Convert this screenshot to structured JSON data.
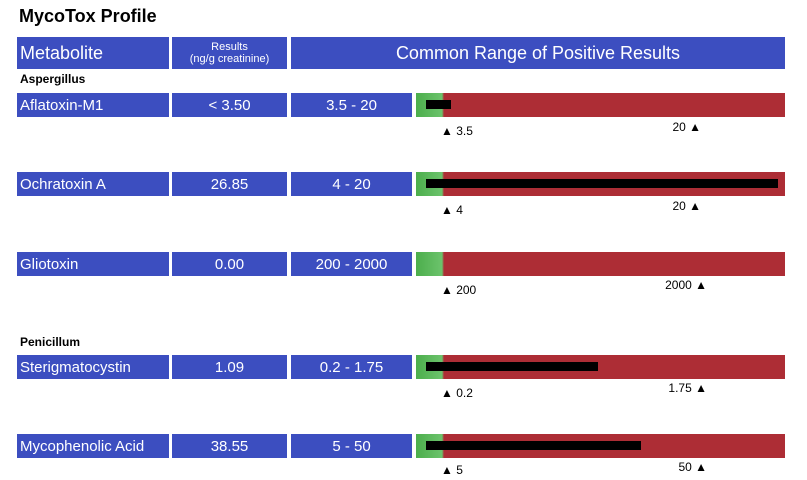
{
  "title": "MycoTox Profile",
  "header": {
    "metabolite": "Metabolite",
    "results_line1": "Results",
    "results_line2": "(ng/g creatinine)",
    "range": "Common Range of Positive Results"
  },
  "sections": [
    {
      "name": "Aspergillus",
      "items": [
        {
          "metabolite": "Aflatoxin-M1",
          "result": "< 3.50",
          "range": "3.5 - 20",
          "low_label": "▲ 3.5",
          "high_label": "20 ▲",
          "bar_fill_fraction": 0.07
        },
        {
          "metabolite": "Ochratoxin A",
          "result": "26.85",
          "range": "4 - 20",
          "low_label": "▲ 4",
          "high_label": "20 ▲",
          "bar_fill_fraction": 1.0
        },
        {
          "metabolite": "Gliotoxin",
          "result": "0.00",
          "range": "200 - 2000",
          "low_label": "▲ 200",
          "high_label": "2000 ▲",
          "bar_fill_fraction": 0.0
        }
      ]
    },
    {
      "name": "Penicillum",
      "items": [
        {
          "metabolite": "Sterigmatocystin",
          "result": "1.09",
          "range": "0.2 - 1.75",
          "low_label": "▲ 0.2",
          "high_label": "1.75 ▲",
          "bar_fill_fraction": 0.49
        },
        {
          "metabolite": "Mycophenolic Acid",
          "result": "38.55",
          "range": "5 - 50",
          "low_label": "▲ 5",
          "high_label": "50 ▲",
          "bar_fill_fraction": 0.61
        }
      ]
    }
  ],
  "colors": {
    "header_bg": "#3c4ec0",
    "normal_zone": "#5cb85c",
    "positive_zone": "#ad2d35",
    "marker": "#000000"
  }
}
